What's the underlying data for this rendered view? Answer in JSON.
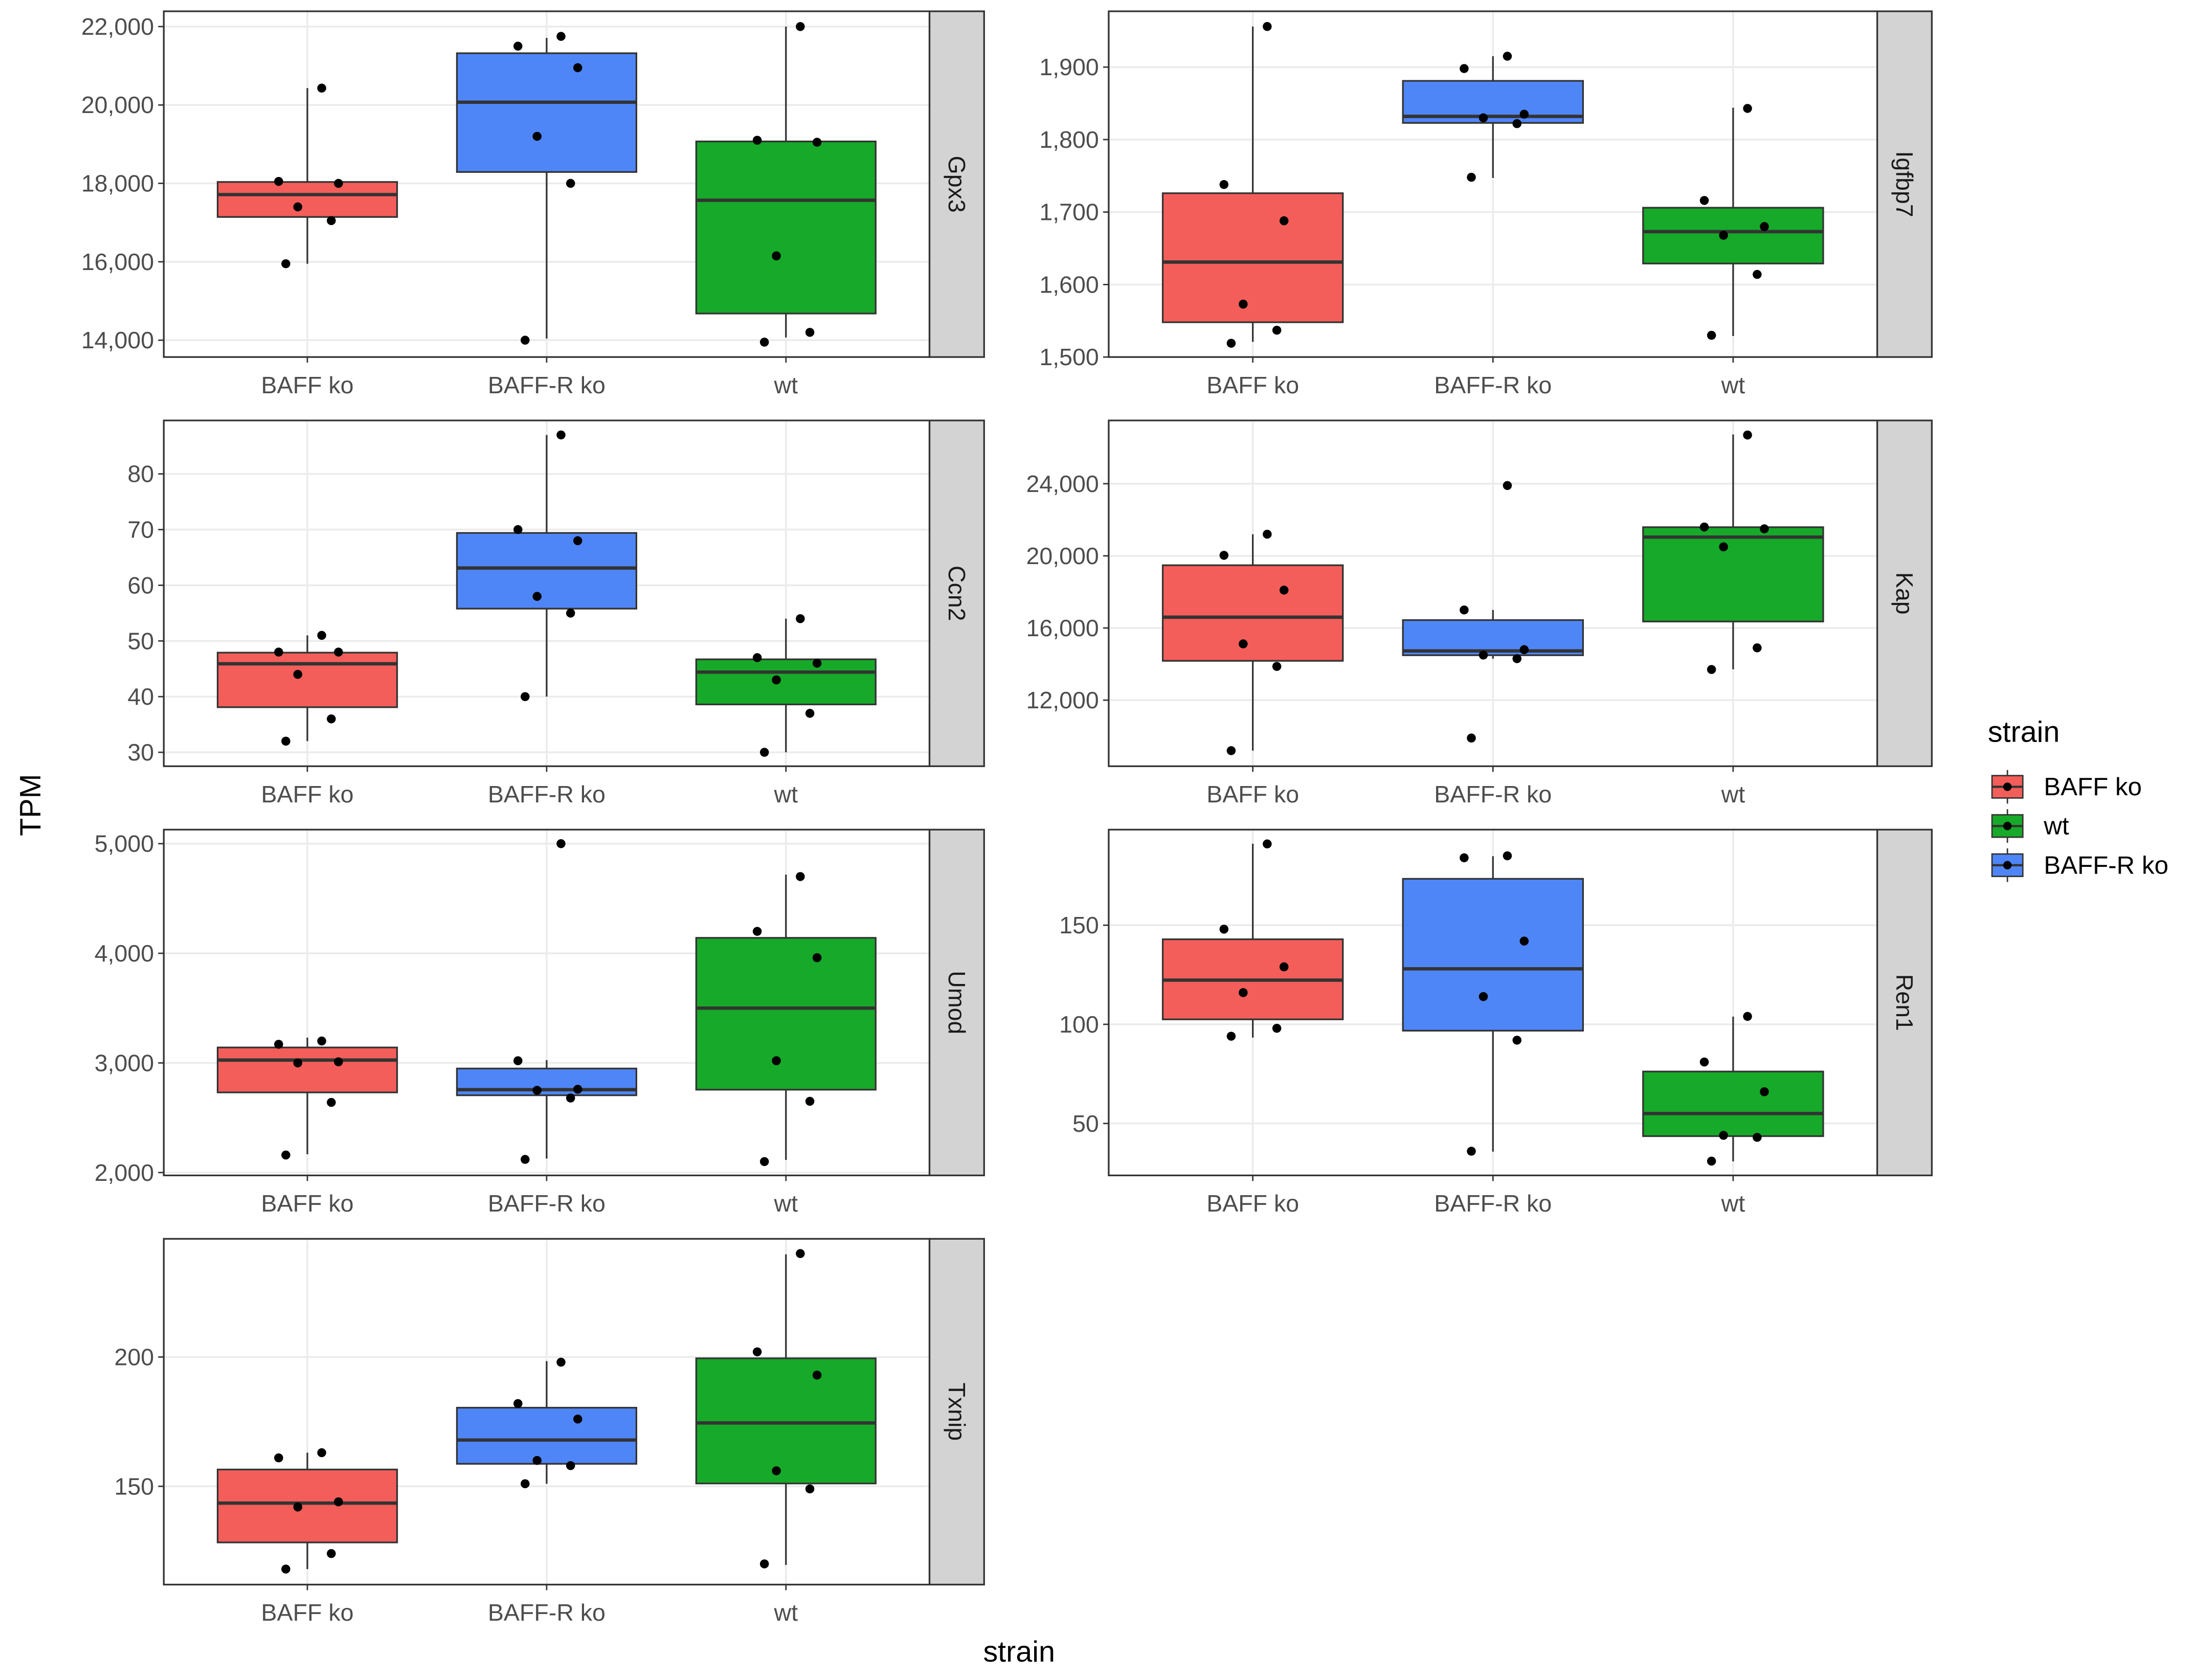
{
  "chart_data": {
    "type": "box",
    "xlabel": "strain",
    "ylabel": "TPM",
    "legend_title": "strain",
    "legend_position": "right",
    "grid": true,
    "categories": [
      "BAFF ko",
      "BAFF-R ko",
      "wt"
    ],
    "series": [
      {
        "name": "BAFF ko",
        "color": "#f35e5a"
      },
      {
        "name": "wt",
        "color": "#17a929"
      },
      {
        "name": "BAFF-R ko",
        "color": "#4f86f7"
      }
    ],
    "facets": [
      {
        "name": "Gpx3",
        "ylim": [
          13570,
          22390
        ],
        "yticks": [
          {
            "value": 14000,
            "label": "14,000"
          },
          {
            "value": 16000,
            "label": "16,000"
          },
          {
            "value": 18000,
            "label": "18,000"
          },
          {
            "value": 20000,
            "label": "20,000"
          },
          {
            "value": 22000,
            "label": "22,000"
          }
        ],
        "boxes": [
          {
            "low": 15950,
            "q1": 17143,
            "median": 17714,
            "q3": 18036,
            "high": 20430,
            "points": [
              20430,
              18050,
              18000,
              17400,
              17050,
              15950
            ]
          },
          {
            "low": 14040,
            "q1": 18290,
            "median": 20070,
            "q3": 21320,
            "high": 21710,
            "points": [
              21750,
              21500,
              20950,
              19200,
              18000,
              14000
            ]
          },
          {
            "low": 14070,
            "q1": 14680,
            "median": 17570,
            "q3": 19070,
            "high": 22000,
            "points": [
              22000,
              19100,
              19050,
              16150,
              14200,
              13950
            ]
          }
        ]
      },
      {
        "name": "Igfbp7",
        "ylim": [
          1500,
          1977
        ],
        "yticks": [
          {
            "value": 1500,
            "label": "1,500"
          },
          {
            "value": 1600,
            "label": "1,600"
          },
          {
            "value": 1700,
            "label": "1,700"
          },
          {
            "value": 1800,
            "label": "1,800"
          },
          {
            "value": 1900,
            "label": "1,900"
          }
        ],
        "boxes": [
          {
            "low": 1521,
            "q1": 1548,
            "median": 1631,
            "q3": 1726,
            "high": 1956,
            "points": [
              1956,
              1738,
              1688,
              1573,
              1537,
              1519
            ]
          },
          {
            "low": 1747,
            "q1": 1823,
            "median": 1832,
            "q3": 1881,
            "high": 1915,
            "points": [
              1915,
              1898,
              1835,
              1830,
              1822,
              1748
            ]
          },
          {
            "low": 1529,
            "q1": 1629,
            "median": 1673,
            "q3": 1706,
            "high": 1844,
            "points": [
              1843,
              1716,
              1680,
              1668,
              1614,
              1530
            ]
          }
        ]
      },
      {
        "name": "Ccn2",
        "ylim": [
          27.5,
          89.6
        ],
        "yticks": [
          30,
          40,
          50,
          60,
          70,
          80
        ],
        "boxes": [
          {
            "low": 32,
            "q1": 38.1,
            "median": 45.9,
            "q3": 47.9,
            "high": 51,
            "points": [
              51,
              48,
              48,
              44,
              36,
              32
            ]
          },
          {
            "low": 40,
            "q1": 55.8,
            "median": 63.1,
            "q3": 69.4,
            "high": 87,
            "points": [
              87,
              70,
              68,
              58,
              55,
              40
            ]
          },
          {
            "low": 30,
            "q1": 38.6,
            "median": 44.4,
            "q3": 46.7,
            "high": 54,
            "points": [
              54,
              47,
              46,
              43,
              37,
              30
            ]
          }
        ]
      },
      {
        "name": "Kap",
        "ylim": [
          8337,
          27507
        ],
        "yticks": [
          {
            "value": 12000,
            "label": "12,000"
          },
          {
            "value": 16000,
            "label": "16,000"
          },
          {
            "value": 20000,
            "label": "20,000"
          },
          {
            "value": 24000,
            "label": "24,000"
          }
        ],
        "boxes": [
          {
            "low": 9200,
            "q1": 14180,
            "median": 16600,
            "q3": 19480,
            "high": 21200,
            "points": [
              21200,
              20030,
              18100,
              15120,
              13870,
              9200
            ]
          },
          {
            "low": 14300,
            "q1": 14490,
            "median": 14730,
            "q3": 16440,
            "high": 17000,
            "points": [
              23900,
              17000,
              14800,
              14500,
              14300,
              9900
            ]
          },
          {
            "low": 13710,
            "q1": 16360,
            "median": 21040,
            "q3": 21590,
            "high": 26730,
            "points": [
              26700,
              21600,
              21500,
              20500,
              14900,
              13700
            ]
          }
        ]
      },
      {
        "name": "Umod",
        "ylim": [
          1974,
          5128
        ],
        "yticks": [
          {
            "value": 2000,
            "label": "2,000"
          },
          {
            "value": 3000,
            "label": "3,000"
          },
          {
            "value": 4000,
            "label": "4,000"
          },
          {
            "value": 5000,
            "label": "5,000"
          }
        ],
        "boxes": [
          {
            "low": 2167,
            "q1": 2731,
            "median": 3026,
            "q3": 3141,
            "high": 3231,
            "points": [
              3200,
              3170,
              3010,
              3000,
              2640,
              2160
            ]
          },
          {
            "low": 2128,
            "q1": 2705,
            "median": 2756,
            "q3": 2949,
            "high": 3026,
            "points": [
              5000,
              3020,
              2760,
              2750,
              2680,
              2120
            ]
          },
          {
            "low": 2115,
            "q1": 2756,
            "median": 3500,
            "q3": 4141,
            "high": 4718,
            "points": [
              4700,
              4200,
              3960,
              3020,
              2650,
              2100
            ]
          }
        ]
      },
      {
        "name": "Ren1",
        "ylim": [
          23.8,
          198.2
        ],
        "yticks": [
          50,
          100,
          150
        ],
        "boxes": [
          {
            "low": 93.3,
            "q1": 102.5,
            "median": 122.3,
            "q3": 142.9,
            "high": 191.1,
            "points": [
              191,
              148,
              129,
              116,
              98,
              94
            ]
          },
          {
            "low": 35.8,
            "q1": 96.8,
            "median": 128,
            "q3": 173.4,
            "high": 184.8,
            "points": [
              185,
              184,
              142,
              114,
              92,
              36
            ]
          },
          {
            "low": 30.9,
            "q1": 43.6,
            "median": 55,
            "q3": 76.2,
            "high": 103.9,
            "points": [
              104,
              81,
              66,
              44,
              43,
              31
            ]
          }
        ]
      },
      {
        "name": "Txnip",
        "ylim": [
          112,
          245.7
        ],
        "yticks": [
          150,
          200
        ],
        "boxes": [
          {
            "low": 118,
            "q1": 128.3,
            "median": 143.5,
            "q3": 156.5,
            "high": 163,
            "points": [
              163,
              161,
              144,
              142,
              124,
              118
            ]
          },
          {
            "low": 151,
            "q1": 158.7,
            "median": 167.9,
            "q3": 180.4,
            "high": 198.4,
            "points": [
              198,
              182,
              176,
              160,
              158,
              151
            ]
          },
          {
            "low": 119.6,
            "q1": 151.1,
            "median": 174.5,
            "q3": 199.5,
            "high": 239.7,
            "points": [
              240,
              202,
              193,
              156,
              149,
              120
            ]
          }
        ]
      }
    ]
  }
}
